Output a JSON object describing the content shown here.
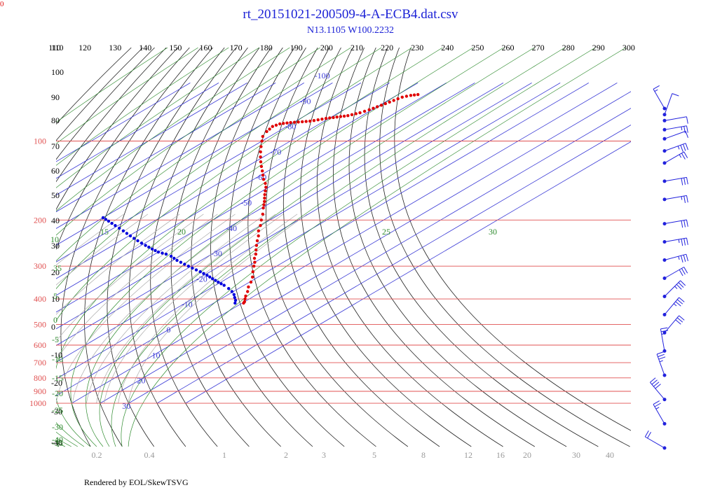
{
  "page": {
    "title": "rt_20151021-200509-4-A-ECB4.dat.csv",
    "subtitle": "N13.1105 W100.2232",
    "credit": "Rendered by EOL/SkewTSVG",
    "corner_mark": "0"
  },
  "colors": {
    "title": "#1c22d6",
    "isobar": "#e05050",
    "isotherm": "#3a3ad6",
    "dry_adiabat": "#222222",
    "moist_adiabat": "#2e8b2e",
    "mixing_ratio": "#aaaaaa",
    "temperature": "#e00000",
    "dewpoint": "#0000dd",
    "wind_barb": "#2222dd"
  },
  "chart_data": {
    "type": "scatter",
    "title": "rt_20151021-200509-4-A-ECB4.dat.csv",
    "subtitle": "N13.1105 W100.2232",
    "y_scale": "log-pressure",
    "pressure_range_hpa": [
      1000,
      70
    ],
    "pressure_labels": [
      "100",
      "200",
      "300",
      "400",
      "500",
      "600",
      "700",
      "800",
      "900",
      "1000"
    ],
    "isotherm_labels": [
      "-100",
      "-90",
      "-80",
      "-70",
      "-60",
      "-50",
      "-40",
      "-30",
      "-20",
      "-10",
      "0",
      "10",
      "20",
      "30"
    ],
    "dry_adiabat_labels": [
      "110",
      "120",
      "130",
      "140",
      "150",
      "160",
      "170",
      "180",
      "190",
      "200",
      "210",
      "220",
      "230",
      "240",
      "250",
      "260",
      "270",
      "280",
      "290",
      "300"
    ],
    "left_axis_labels": [
      "110",
      "100",
      "90",
      "80",
      "70",
      "60",
      "50",
      "40",
      "30",
      "20",
      "10",
      "0",
      "-10",
      "-20",
      "-30",
      "-40"
    ],
    "moist_adiabat_labels": [
      "10",
      "15",
      "20",
      "25",
      "30",
      "35",
      "5",
      "0",
      "-5",
      "-10",
      "-15",
      "-20",
      "-25",
      "-30",
      "-35",
      "-40"
    ],
    "mixing_ratio_labels": [
      "0.2",
      "0.4",
      "1",
      "2",
      "3",
      "5",
      "8",
      "12",
      "16",
      "20",
      "30",
      "40"
    ],
    "series": [
      {
        "kind": "temperature",
        "points": [
          {
            "p": 415,
            "t": 10.5
          },
          {
            "p": 410,
            "t": 10.0
          },
          {
            "p": 400,
            "t": 8.5
          },
          {
            "p": 390,
            "t": 7.0
          },
          {
            "p": 375,
            "t": 5.0
          },
          {
            "p": 360,
            "t": 2.5
          },
          {
            "p": 345,
            "t": 0.5
          },
          {
            "p": 330,
            "t": -2.0
          },
          {
            "p": 315,
            "t": -5.0
          },
          {
            "p": 300,
            "t": -8.0
          },
          {
            "p": 290,
            "t": -10.0
          },
          {
            "p": 280,
            "t": -12.5
          },
          {
            "p": 270,
            "t": -14.5
          },
          {
            "p": 260,
            "t": -17.0
          },
          {
            "p": 250,
            "t": -19.5
          },
          {
            "p": 240,
            "t": -22.0
          },
          {
            "p": 230,
            "t": -24.5
          },
          {
            "p": 220,
            "t": -27.5
          },
          {
            "p": 210,
            "t": -30.0
          },
          {
            "p": 200,
            "t": -33.0
          },
          {
            "p": 190,
            "t": -36.0
          },
          {
            "p": 180,
            "t": -39.5
          },
          {
            "p": 170,
            "t": -43.0
          },
          {
            "p": 160,
            "t": -47.0
          },
          {
            "p": 150,
            "t": -51.0
          },
          {
            "p": 145,
            "t": -53.5
          },
          {
            "p": 140,
            "t": -56.5
          },
          {
            "p": 130,
            "t": -62.0
          },
          {
            "p": 125,
            "t": -65.0
          },
          {
            "p": 120,
            "t": -68.0
          },
          {
            "p": 115,
            "t": -71.0
          },
          {
            "p": 110,
            "t": -74.0
          },
          {
            "p": 105,
            "t": -77.0
          },
          {
            "p": 100,
            "t": -80.0
          },
          {
            "p": 96,
            "t": -82.5
          },
          {
            "p": 92,
            "t": -84.0
          },
          {
            "p": 90,
            "t": -84.5
          },
          {
            "p": 88,
            "t": -85.0
          },
          {
            "p": 86,
            "t": -84.0
          },
          {
            "p": 85,
            "t": -81.0
          },
          {
            "p": 84,
            "t": -75.0
          },
          {
            "p": 83,
            "t": -73.0
          },
          {
            "p": 82,
            "t": -71.0
          },
          {
            "p": 81,
            "t": -68.0
          },
          {
            "p": 80,
            "t": -65.0
          },
          {
            "p": 78,
            "t": -62.5
          },
          {
            "p": 76,
            "t": -61.0
          },
          {
            "p": 74,
            "t": -60.0
          },
          {
            "p": 72,
            "t": -59.0
          },
          {
            "p": 70,
            "t": -58.0
          },
          {
            "p": 68,
            "t": -57.0
          },
          {
            "p": 67,
            "t": -55.0
          },
          {
            "p": 66.5,
            "t": -53.0
          }
        ]
      },
      {
        "kind": "dewpoint",
        "points": [
          {
            "p": 415,
            "t": 7.5
          },
          {
            "p": 405,
            "t": 6.0
          },
          {
            "p": 395,
            "t": 4.0
          },
          {
            "p": 385,
            "t": 2.0
          },
          {
            "p": 375,
            "t": -0.5
          },
          {
            "p": 365,
            "t": -3.5
          },
          {
            "p": 355,
            "t": -7.0
          },
          {
            "p": 345,
            "t": -11.0
          },
          {
            "p": 335,
            "t": -15.0
          },
          {
            "p": 325,
            "t": -19.0
          },
          {
            "p": 315,
            "t": -23.5
          },
          {
            "p": 305,
            "t": -28.5
          },
          {
            "p": 295,
            "t": -33.5
          },
          {
            "p": 285,
            "t": -38.5
          },
          {
            "p": 275,
            "t": -43.0
          },
          {
            "p": 270,
            "t": -46.0
          },
          {
            "p": 265,
            "t": -50.0
          },
          {
            "p": 258,
            "t": -54.0
          },
          {
            "p": 250,
            "t": -58.5
          },
          {
            "p": 240,
            "t": -64.0
          },
          {
            "p": 230,
            "t": -69.5
          },
          {
            "p": 220,
            "t": -75.0
          },
          {
            "p": 210,
            "t": -81.0
          },
          {
            "p": 202,
            "t": -86.0
          },
          {
            "p": 196,
            "t": -90.0
          }
        ]
      }
    ],
    "wind_barbs": [
      {
        "p": 80,
        "dir": 330,
        "speed_kt": 15
      },
      {
        "p": 90,
        "dir": 20,
        "speed_kt": 10
      },
      {
        "p": 100,
        "dir": 80,
        "speed_kt": 10
      },
      {
        "p": 115,
        "dir": 80,
        "speed_kt": 25
      },
      {
        "p": 130,
        "dir": 70,
        "speed_kt": 10
      },
      {
        "p": 150,
        "dir": 70,
        "speed_kt": 35
      },
      {
        "p": 170,
        "dir": 60,
        "speed_kt": 25
      },
      {
        "p": 200,
        "dir": 80,
        "speed_kt": 30
      },
      {
        "p": 230,
        "dir": 80,
        "speed_kt": 25
      },
      {
        "p": 270,
        "dir": 80,
        "speed_kt": 30
      },
      {
        "p": 300,
        "dir": 80,
        "speed_kt": 35
      },
      {
        "p": 330,
        "dir": 75,
        "speed_kt": 35
      },
      {
        "p": 360,
        "dir": 60,
        "speed_kt": 30
      },
      {
        "p": 390,
        "dir": 45,
        "speed_kt": 35
      },
      {
        "p": 420,
        "dir": 40,
        "speed_kt": 35
      },
      {
        "p": 450,
        "dir": 40,
        "speed_kt": 30
      },
      {
        "p": 480,
        "dir": 350,
        "speed_kt": 25
      },
      {
        "p": 520,
        "dir": 340,
        "speed_kt": 35
      },
      {
        "p": 560,
        "dir": 320,
        "speed_kt": 40
      },
      {
        "p": 600,
        "dir": 330,
        "speed_kt": 25
      },
      {
        "p": 640,
        "dir": 300,
        "speed_kt": 20
      }
    ]
  }
}
